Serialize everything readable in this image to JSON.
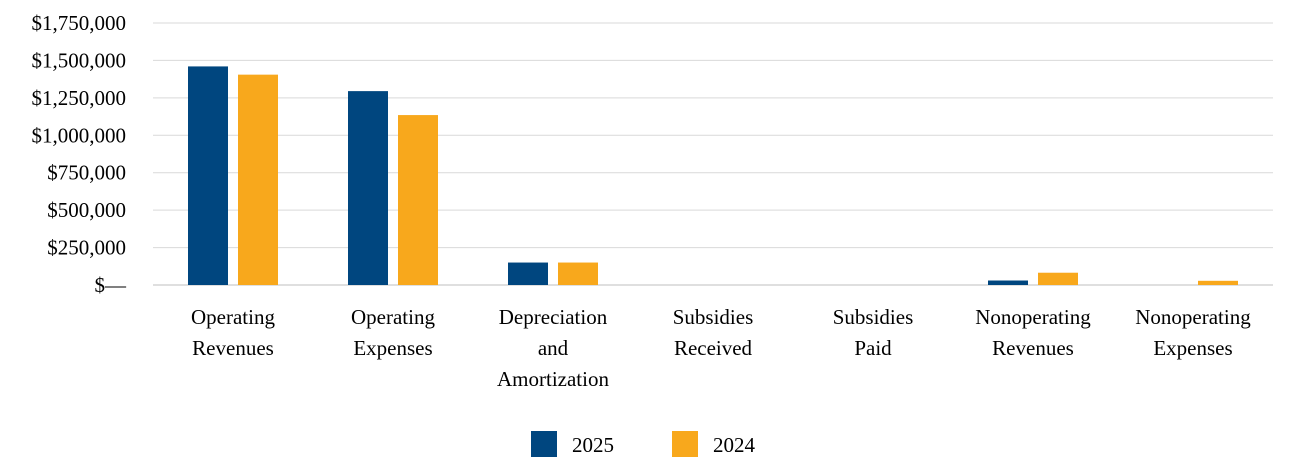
{
  "chart_data": {
    "type": "bar",
    "categories": [
      [
        "Operating",
        "Revenues"
      ],
      [
        "Operating",
        "Expenses"
      ],
      [
        "Depreciation",
        "and",
        "Amortization"
      ],
      [
        "Subsidies",
        "Received"
      ],
      [
        "Subsidies",
        "Paid"
      ],
      [
        "Nonoperating",
        "Revenues"
      ],
      [
        "Nonoperating",
        "Expenses"
      ]
    ],
    "series": [
      {
        "name": "2025",
        "color": "#00467f",
        "values": [
          1460000,
          1295000,
          150000,
          0,
          0,
          30000,
          0
        ]
      },
      {
        "name": "2024",
        "color": "#f8a81c",
        "values": [
          1405000,
          1135000,
          150000,
          0,
          0,
          82000,
          28000
        ]
      }
    ],
    "ylim": [
      0,
      1750000
    ],
    "yticks": [
      0,
      250000,
      500000,
      750000,
      1000000,
      1250000,
      1500000,
      1750000
    ],
    "ytick_labels": [
      "$—",
      "$250,000",
      "$500,000",
      "$750,000",
      "$1,000,000",
      "$1,250,000",
      "$1,500,000",
      "$1,750,000"
    ],
    "grid": true,
    "legend_position": "bottom",
    "title": "",
    "xlabel": "",
    "ylabel": ""
  }
}
